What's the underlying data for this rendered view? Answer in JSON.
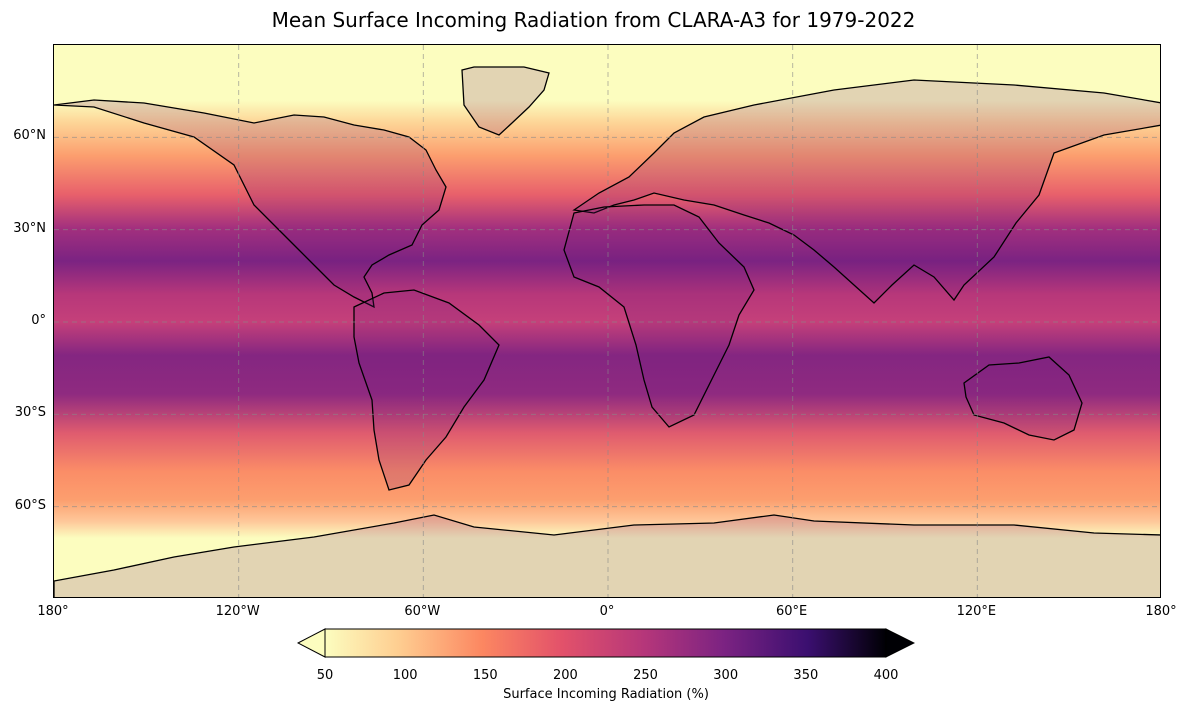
{
  "title": "Mean Surface Incoming Radiation from CLARA-A3 for 1979-2022",
  "map": {
    "projection": "PlateCarree",
    "lon_range": [
      -180,
      180
    ],
    "lat_range": [
      -90,
      90
    ],
    "gridlines": true,
    "coastlines": true,
    "lat_ticks": [
      {
        "value": 60,
        "label": "60°N"
      },
      {
        "value": 30,
        "label": "30°N"
      },
      {
        "value": 0,
        "label": "0°"
      },
      {
        "value": -30,
        "label": "30°S"
      },
      {
        "value": -60,
        "label": "60°S"
      }
    ],
    "lon_ticks": [
      {
        "value": -180,
        "label": "180°"
      },
      {
        "value": -120,
        "label": "120°W"
      },
      {
        "value": -60,
        "label": "60°W"
      },
      {
        "value": 0,
        "label": "0°"
      },
      {
        "value": 60,
        "label": "60°E"
      },
      {
        "value": 120,
        "label": "120°E"
      },
      {
        "value": 180,
        "label": "180°"
      }
    ]
  },
  "colorbar": {
    "colormap": "magma_r",
    "range": [
      50,
      400
    ],
    "extend": "both",
    "ticks": [
      "50",
      "100",
      "150",
      "200",
      "250",
      "300",
      "350",
      "400"
    ],
    "label": "Surface Incoming Radiation (%)"
  }
}
